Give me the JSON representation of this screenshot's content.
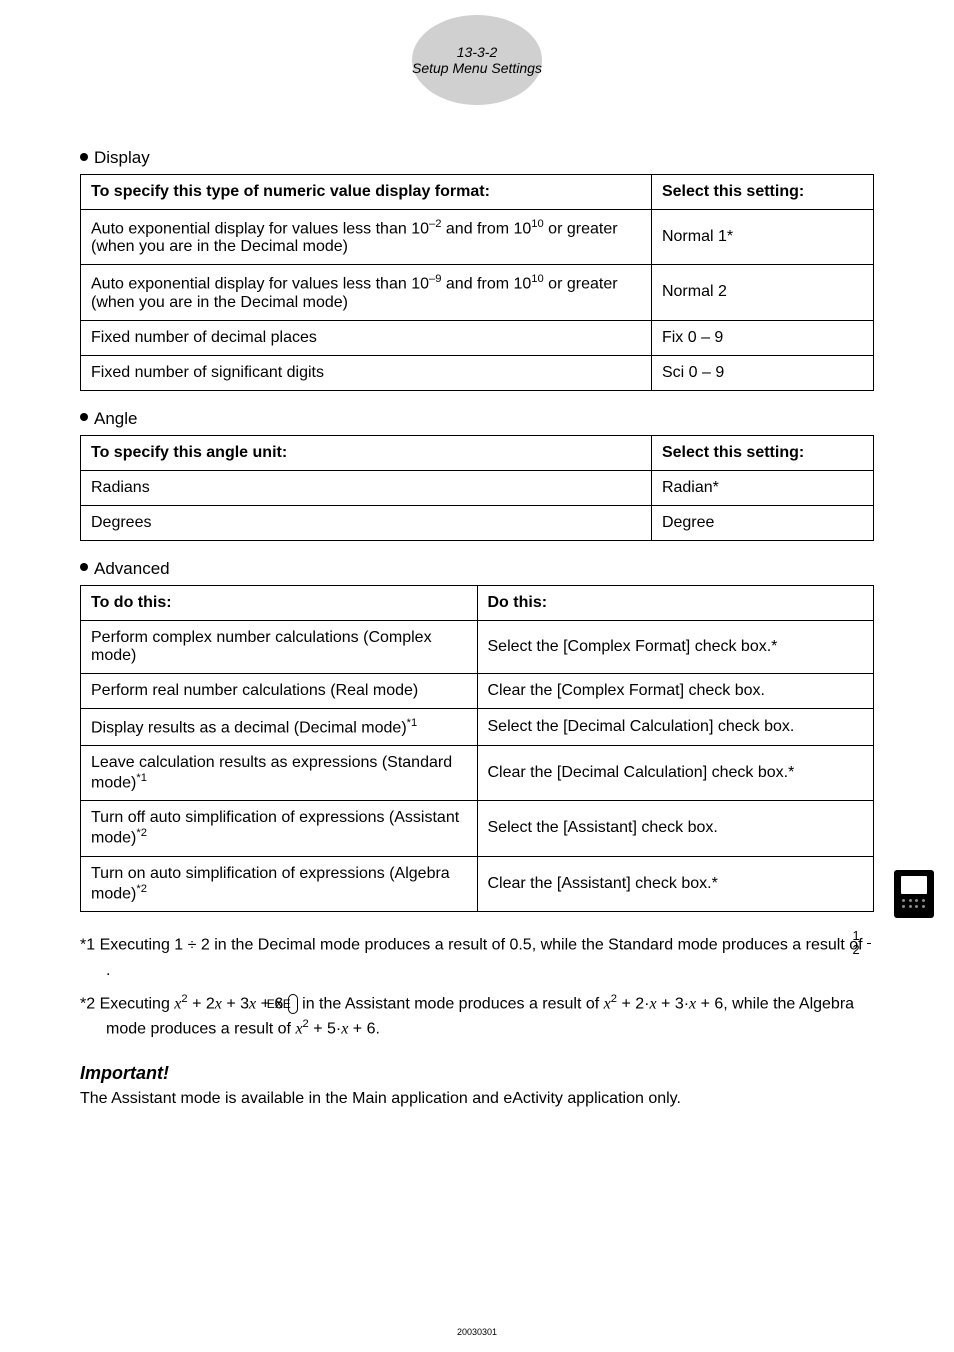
{
  "header": {
    "page_num": "13-3-2",
    "page_title": "Setup Menu Settings"
  },
  "display_section": {
    "heading": "Display",
    "col1_header": "To specify this type of numeric value display format:",
    "col2_header": "Select this setting:",
    "rows": [
      {
        "desc_prefix": "Auto exponential display for values less than 10",
        "exp1": "–2",
        "desc_mid": " and from 10",
        "exp2": "10",
        "desc_suffix": " or greater (when you are in the Decimal mode)",
        "setting": "Normal 1*"
      },
      {
        "desc_prefix": "Auto exponential display for values less than 10",
        "exp1": "–9",
        "desc_mid": " and from 10",
        "exp2": "10",
        "desc_suffix": " or greater (when you are in the Decimal mode)",
        "setting": "Normal 2"
      },
      {
        "desc_plain": "Fixed number of decimal places",
        "setting": "Fix 0 – 9"
      },
      {
        "desc_plain": "Fixed number of significant digits",
        "setting": "Sci 0 – 9"
      }
    ]
  },
  "angle_section": {
    "heading": "Angle",
    "col1_header": "To specify this angle unit:",
    "col2_header": "Select this setting:",
    "rows": [
      {
        "unit": "Radians",
        "setting": "Radian*"
      },
      {
        "unit": "Degrees",
        "setting": "Degree"
      }
    ]
  },
  "advanced_section": {
    "heading": "Advanced",
    "col1_header": "To do this:",
    "col2_header": "Do this:",
    "rows": [
      {
        "todo": "Perform complex number calculations (Complex mode)",
        "dothis": "Select the [Complex Format] check box.*"
      },
      {
        "todo": "Perform real number calculations (Real mode)",
        "dothis": "Clear the [Complex Format] check box."
      },
      {
        "todo_prefix": "Display results as a decimal (Decimal mode)",
        "todo_sup": "*1",
        "dothis": "Select the [Decimal Calculation] check box."
      },
      {
        "todo_prefix": "Leave calculation results as expressions (Standard mode)",
        "todo_sup": "*1",
        "dothis": "Clear the [Decimal Calculation] check box.*"
      },
      {
        "todo_prefix": "Turn off auto simplification of expressions (Assistant mode)",
        "todo_sup": "*2",
        "dothis": "Select the [Assistant] check box."
      },
      {
        "todo_prefix": "Turn on auto simplification of expressions (Algebra mode)",
        "todo_sup": "*2",
        "dothis": "Clear the [Assistant] check box.*"
      }
    ]
  },
  "footnotes": {
    "fn1_prefix": "*1 Executing 1 ÷ 2 in the Decimal mode produces a result of 0.5, while the Standard mode produces a result of ",
    "fn1_frac_num": "1",
    "fn1_frac_den": "2",
    "fn1_suffix": " .",
    "fn2_prefix": "*2 Executing ",
    "fn2_x": "x",
    "fn2_sq": "2",
    "fn2_p1": " + 2",
    "fn2_p2": " + 3",
    "fn2_p3": " + 6 ",
    "fn2_exe": "EXE",
    "fn2_mid": " in the Assistant mode produces a result of ",
    "fn2_p4": " + 2·",
    "fn2_p5": " + 3·",
    "fn2_p6": " + 6, while the Algebra mode produces a result of ",
    "fn2_p7": " + 5·",
    "fn2_p8": " + 6."
  },
  "important": {
    "heading": "Important!",
    "text": "The Assistant mode is available in the Main application and eActivity application only."
  },
  "footer": {
    "num": "20030301"
  },
  "colors": {
    "badge_bg": "#d0d0d0",
    "text": "#000000",
    "border": "#000000",
    "icon_bg": "#000000",
    "icon_screen": "#ffffff"
  }
}
